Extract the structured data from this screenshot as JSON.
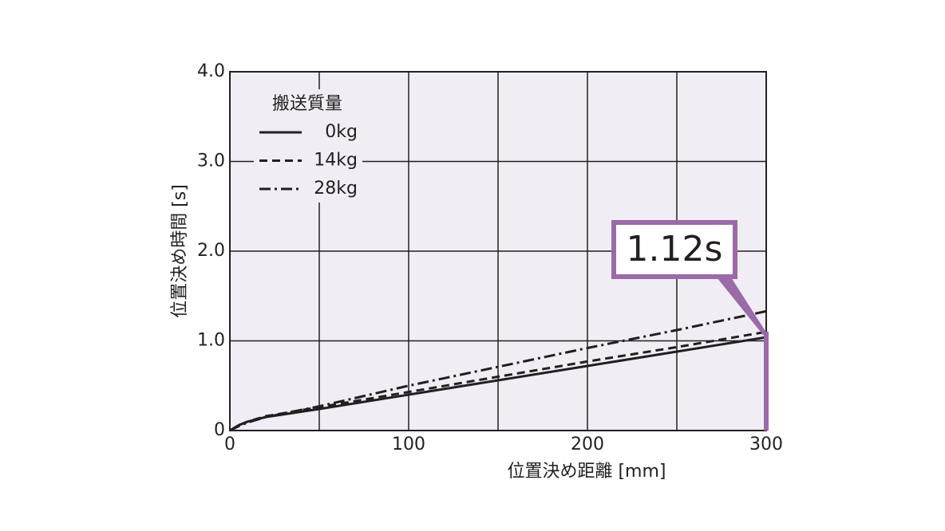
{
  "chart_data": {
    "type": "line",
    "x_label": "位置決め距離 [mm]",
    "y_label": "位置決め時間 [s]",
    "legend_title": "搬送質量",
    "legend": "upper left",
    "annotation": "1.12s",
    "annotation_color": "#9b6aa8",
    "x": [
      0,
      5,
      10,
      20,
      50,
      100,
      150,
      200,
      250,
      300
    ],
    "series": [
      {
        "name": "0kg",
        "color": "#231f20",
        "style": "solid",
        "values": [
          0,
          0.06,
          0.1,
          0.15,
          0.24,
          0.4,
          0.56,
          0.72,
          0.88,
          1.04
        ]
      },
      {
        "name": "14kg",
        "color": "#231f20",
        "style": "dashed",
        "values": [
          0,
          0.06,
          0.1,
          0.16,
          0.26,
          0.43,
          0.6,
          0.77,
          0.93,
          1.1
        ]
      },
      {
        "name": "28kg",
        "color": "#231f20",
        "style": "dashdot",
        "values": [
          0,
          0.05,
          0.09,
          0.15,
          0.27,
          0.5,
          0.71,
          0.92,
          1.12,
          1.33
        ]
      }
    ],
    "xlim": [
      0,
      300
    ],
    "xticks": [
      0,
      100,
      200,
      300
    ],
    "x_grid_step": 50,
    "ylim": [
      0,
      4
    ],
    "yticks": [
      0,
      {
        "value": 1,
        "label": "1.0"
      },
      {
        "value": 2,
        "label": "2.0"
      },
      {
        "value": 3,
        "label": "3.0"
      },
      {
        "value": 4,
        "label": "4.0"
      }
    ],
    "grid": true
  }
}
